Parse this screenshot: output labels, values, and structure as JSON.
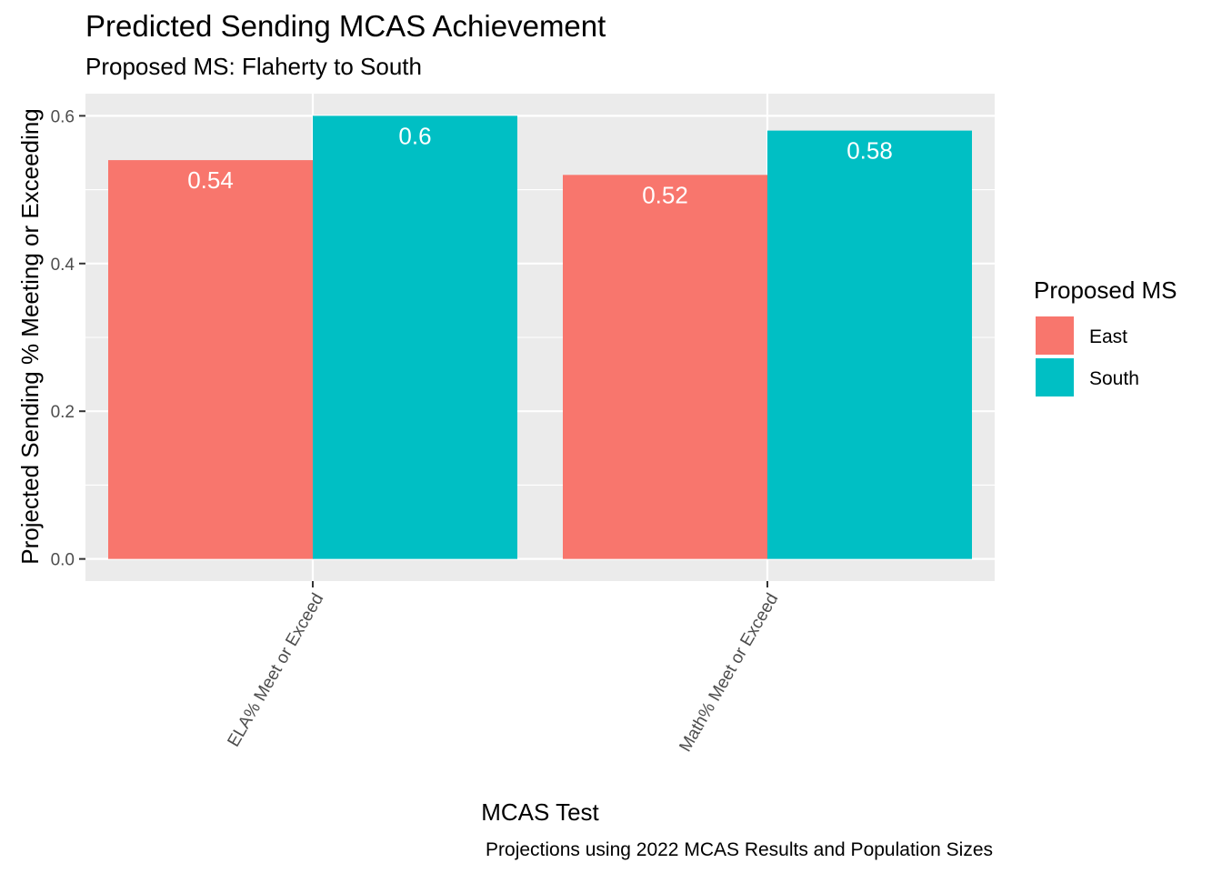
{
  "chart_data": {
    "type": "bar",
    "title": "Predicted Sending MCAS Achievement",
    "subtitle": "Proposed MS: Flaherty to South",
    "xlabel": "MCAS Test",
    "ylabel": "Projected Sending % Meeting or Exceeding",
    "caption": "Projections using 2022 MCAS Results and Population Sizes",
    "categories": [
      "ELA% Meet or Exceed",
      "Math% Meet or Exceed"
    ],
    "series": [
      {
        "name": "East",
        "color": "#F8766D",
        "values": [
          0.54,
          0.52
        ]
      },
      {
        "name": "South",
        "color": "#00BFC4",
        "values": [
          0.6,
          0.58
        ]
      }
    ],
    "data_labels": [
      [
        "0.54",
        "0.52"
      ],
      [
        "0.6",
        "0.58"
      ]
    ],
    "ylim": [
      -0.03,
      0.63
    ],
    "yticks": [
      0.0,
      0.2,
      0.4,
      0.6
    ],
    "ytick_labels": [
      "0.0",
      "0.2",
      "0.4",
      "0.6"
    ],
    "grid": true,
    "legend": {
      "title": "Proposed MS",
      "position": "right"
    },
    "panel_background": "#EBEBEB",
    "gridline_color": "#FFFFFF"
  }
}
